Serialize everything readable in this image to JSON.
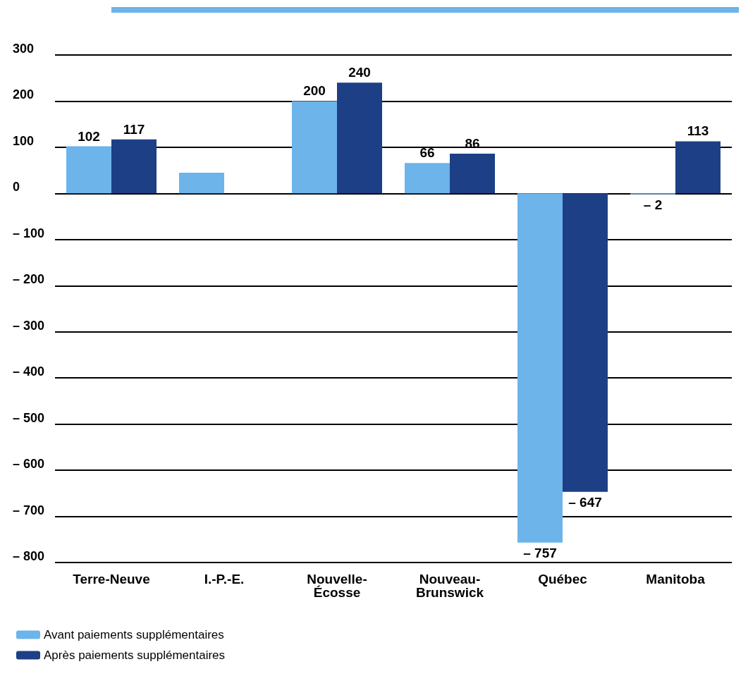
{
  "chart_data": {
    "type": "bar",
    "categories": [
      "Terre-Neuve",
      "I.-P.-E.",
      "Nouvelle-\nÉcosse",
      "Nouveau-\nBrunswick",
      "Québec",
      "Manitoba"
    ],
    "series": [
      {
        "name": "Avant paiements supplémentaires",
        "color": "#6cb4ea",
        "values": [
          102,
          45,
          200,
          66,
          -757,
          -2
        ],
        "value_labels": [
          "102",
          null,
          "200",
          "66",
          "– 757",
          "– 2"
        ]
      },
      {
        "name": "Après paiements supplémentaires",
        "color": "#1d3f86",
        "values": [
          117,
          null,
          240,
          86,
          -647,
          113
        ],
        "value_labels": [
          "117",
          null,
          "240",
          "86",
          "– 647",
          "113"
        ]
      }
    ],
    "ylim": [
      -800,
      300
    ],
    "yticks": [
      {
        "value": -800,
        "label": "– 800"
      },
      {
        "value": -700,
        "label": "– 700"
      },
      {
        "value": -600,
        "label": "– 600"
      },
      {
        "value": -500,
        "label": "– 500"
      },
      {
        "value": -400,
        "label": "– 400"
      },
      {
        "value": -300,
        "label": "– 300"
      },
      {
        "value": -200,
        "label": "– 200"
      },
      {
        "value": -100,
        "label": "– 100"
      },
      0,
      100,
      200,
      300
    ],
    "grid": "y",
    "legend": "bottom left",
    "data_labels": true
  }
}
